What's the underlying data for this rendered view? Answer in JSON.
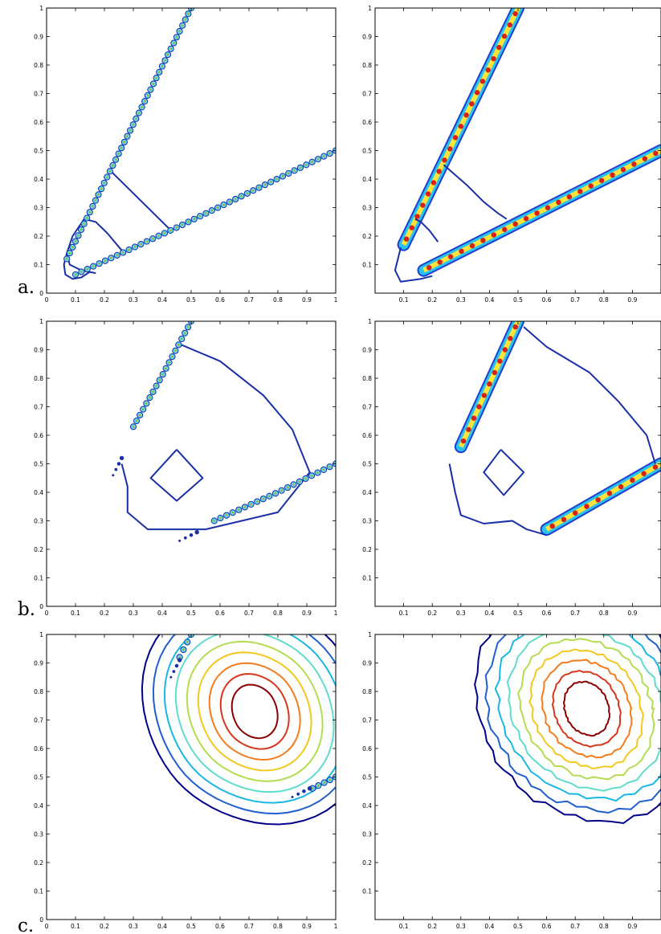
{
  "figure": {
    "row_labels": [
      "a.",
      "b.",
      "c."
    ]
  },
  "chart_data": [
    {
      "id": "a-left",
      "type": "line",
      "title": "",
      "xlabel": "",
      "ylabel": "",
      "xlim": [
        0,
        1
      ],
      "ylim": [
        0,
        1
      ],
      "grid": false,
      "x_ticks": [
        "0",
        "0.1",
        "0.2",
        "0.3",
        "0.4",
        "0.5",
        "0.6",
        "0.7",
        "0.8",
        "0.9",
        "1"
      ],
      "y_ticks": [
        "0",
        "0.1",
        "0.2",
        "0.3",
        "0.4",
        "0.5",
        "0.6",
        "0.7",
        "0.8",
        "0.9",
        "1"
      ],
      "markers": [
        {
          "x": [
            0.07,
            0.23,
            0.5
          ],
          "y": [
            0.12,
            0.45,
            1.0
          ]
        },
        {
          "x": [
            0.1,
            0.45,
            1.0
          ],
          "y": [
            0.065,
            0.23,
            0.5
          ]
        }
      ],
      "series": [
        {
          "color": "#1a2fa8",
          "x": [
            0.22,
            0.43
          ],
          "y": [
            0.43,
            0.22
          ]
        },
        {
          "color": "#1a2fa8",
          "x": [
            0.13,
            0.17,
            0.21,
            0.26
          ],
          "y": [
            0.26,
            0.25,
            0.21,
            0.15
          ]
        },
        {
          "color": "#1a2fa8",
          "x": [
            0.13,
            0.09,
            0.07,
            0.08,
            0.12,
            0.17
          ],
          "y": [
            0.26,
            0.2,
            0.14,
            0.1,
            0.08,
            0.07
          ]
        },
        {
          "color": "#1a2fa8",
          "x": [
            0.07,
            0.06,
            0.065,
            0.09,
            0.12,
            0.15
          ],
          "y": [
            0.14,
            0.1,
            0.065,
            0.05,
            0.055,
            0.075
          ]
        }
      ]
    },
    {
      "id": "a-right",
      "type": "line",
      "title": "",
      "xlabel": "",
      "ylabel": "",
      "xlim": [
        0,
        1
      ],
      "ylim": [
        0,
        1
      ],
      "grid": false,
      "x_ticks": [
        "0.1",
        "0.2",
        "0.3",
        "0.4",
        "0.5",
        "0.6",
        "0.7",
        "0.8",
        "0.9"
      ],
      "y_ticks": [
        "0.1",
        "0.2",
        "0.3",
        "0.4",
        "0.5",
        "0.6",
        "0.7",
        "0.8",
        "0.9",
        "1"
      ],
      "bands": [
        {
          "x": [
            0.1,
            0.5
          ],
          "y": [
            0.17,
            1.0
          ]
        },
        {
          "x": [
            0.17,
            1.0
          ],
          "y": [
            0.08,
            0.5
          ]
        }
      ],
      "series": [
        {
          "color": "#1a2fa8",
          "x": [
            0.24,
            0.32,
            0.38,
            0.43,
            0.46
          ],
          "y": [
            0.45,
            0.38,
            0.32,
            0.28,
            0.26
          ]
        },
        {
          "color": "#1a2fa8",
          "x": [
            0.14,
            0.16,
            0.19,
            0.22
          ],
          "y": [
            0.26,
            0.25,
            0.22,
            0.18
          ]
        },
        {
          "color": "#1a2fa8",
          "x": [
            0.09,
            0.07,
            0.09,
            0.16,
            0.2
          ],
          "y": [
            0.16,
            0.08,
            0.04,
            0.05,
            0.06
          ]
        }
      ]
    },
    {
      "id": "b-left",
      "type": "line",
      "title": "",
      "xlabel": "",
      "ylabel": "",
      "xlim": [
        0,
        1
      ],
      "ylim": [
        0,
        1
      ],
      "grid": false,
      "x_ticks": [
        "0",
        "0.1",
        "0.2",
        "0.3",
        "0.4",
        "0.5",
        "0.6",
        "0.7",
        "0.8",
        "0.9",
        "1"
      ],
      "y_ticks": [
        "0",
        "0.1",
        "0.2",
        "0.3",
        "0.4",
        "0.5",
        "0.6",
        "0.7",
        "0.8",
        "0.9",
        "1"
      ],
      "markers": [
        {
          "x": [
            0.3,
            0.4,
            0.5
          ],
          "y": [
            0.63,
            0.81,
            1.0
          ]
        },
        {
          "x": [
            0.58,
            0.8,
            1.0
          ],
          "y": [
            0.3,
            0.4,
            0.5
          ]
        }
      ],
      "dots": [
        {
          "x": [
            0.23,
            0.24,
            0.25,
            0.26
          ],
          "y": [
            0.46,
            0.48,
            0.5,
            0.52
          ]
        },
        {
          "x": [
            0.46,
            0.48,
            0.5,
            0.52
          ],
          "y": [
            0.23,
            0.24,
            0.25,
            0.26
          ]
        }
      ],
      "series": [
        {
          "color": "#1a2fa8",
          "x": [
            0.46,
            0.6,
            0.75,
            0.85,
            0.91,
            0.8,
            0.55,
            0.35,
            0.28,
            0.28,
            0.26
          ],
          "y": [
            0.92,
            0.86,
            0.74,
            0.62,
            0.47,
            0.33,
            0.27,
            0.27,
            0.33,
            0.42,
            0.5
          ]
        },
        {
          "color": "#1a2fa8",
          "x": [
            0.45,
            0.54,
            0.45,
            0.36,
            0.45
          ],
          "y": [
            0.55,
            0.45,
            0.37,
            0.45,
            0.55
          ]
        }
      ]
    },
    {
      "id": "b-right",
      "type": "line",
      "title": "",
      "xlabel": "",
      "ylabel": "",
      "xlim": [
        0,
        1
      ],
      "ylim": [
        0,
        1
      ],
      "grid": false,
      "x_ticks": [
        "0.1",
        "0.2",
        "0.3",
        "0.4",
        "0.5",
        "0.6",
        "0.7",
        "0.8",
        "0.9"
      ],
      "y_ticks": [
        "0.1",
        "0.2",
        "0.3",
        "0.4",
        "0.5",
        "0.6",
        "0.7",
        "0.8",
        "0.9",
        "1"
      ],
      "bands": [
        {
          "x": [
            0.3,
            0.5
          ],
          "y": [
            0.56,
            1.0
          ]
        },
        {
          "x": [
            0.6,
            1.0
          ],
          "y": [
            0.27,
            0.5
          ]
        }
      ],
      "series": [
        {
          "color": "#1a2fa8",
          "x": [
            0.52,
            0.6,
            0.75,
            0.85,
            0.95,
            0.98
          ],
          "y": [
            0.98,
            0.91,
            0.82,
            0.72,
            0.6,
            0.5
          ]
        },
        {
          "color": "#1a2fa8",
          "x": [
            0.26,
            0.28,
            0.3,
            0.38,
            0.48,
            0.53,
            0.6
          ],
          "y": [
            0.5,
            0.4,
            0.32,
            0.29,
            0.3,
            0.27,
            0.25
          ]
        },
        {
          "color": "#1a2fa8",
          "x": [
            0.44,
            0.52,
            0.45,
            0.38,
            0.44
          ],
          "y": [
            0.55,
            0.47,
            0.39,
            0.47,
            0.55
          ]
        }
      ]
    },
    {
      "id": "c-left",
      "type": "line",
      "title": "",
      "xlabel": "",
      "ylabel": "",
      "xlim": [
        0,
        1
      ],
      "ylim": [
        0,
        1
      ],
      "grid": false,
      "x_ticks": [
        "0",
        "0.1",
        "0.2",
        "0.3",
        "0.4",
        "0.5",
        "0.6",
        "0.7",
        "0.8",
        "0.9",
        "1"
      ],
      "y_ticks": [
        "0",
        "0.1",
        "0.2",
        "0.3",
        "0.4",
        "0.5",
        "0.6",
        "0.7",
        "0.8",
        "0.9",
        "1"
      ],
      "markers": [
        {
          "x": [
            0.46,
            0.48,
            0.5
          ],
          "y": [
            0.92,
            0.96,
            1.0
          ]
        },
        {
          "x": [
            0.92,
            0.96,
            1.0
          ],
          "y": [
            0.46,
            0.48,
            0.5
          ]
        }
      ],
      "dots": [
        {
          "x": [
            0.43,
            0.44,
            0.45,
            0.46
          ],
          "y": [
            0.85,
            0.87,
            0.89,
            0.91
          ]
        },
        {
          "x": [
            0.85,
            0.87,
            0.89,
            0.91
          ],
          "y": [
            0.43,
            0.44,
            0.45,
            0.46
          ]
        }
      ],
      "contour": {
        "center": [
          0.72,
          0.73
        ],
        "levels": 9,
        "color_scale": [
          "#00008b",
          "#1f5fd0",
          "#19b7e6",
          "#5fdccc",
          "#b4dc50",
          "#f3c81e",
          "#f47c1c",
          "#d5361c",
          "#8b0000"
        ]
      }
    },
    {
      "id": "c-right",
      "type": "line",
      "title": "",
      "xlabel": "",
      "ylabel": "",
      "xlim": [
        0,
        1
      ],
      "ylim": [
        0,
        1
      ],
      "grid": false,
      "x_ticks": [
        "0.1",
        "0.2",
        "0.3",
        "0.4",
        "0.5",
        "0.6",
        "0.7",
        "0.8",
        "0.9"
      ],
      "y_ticks": [
        "0.1",
        "0.2",
        "0.3",
        "0.4",
        "0.5",
        "0.6",
        "0.7",
        "0.8",
        "0.9",
        "1"
      ],
      "contour": {
        "center": [
          0.74,
          0.74
        ],
        "levels": 9,
        "color_scale": [
          "#00008b",
          "#1f5fd0",
          "#19b7e6",
          "#5fdccc",
          "#b4dc50",
          "#f3c81e",
          "#f47c1c",
          "#d5361c",
          "#8b0000"
        ]
      }
    }
  ]
}
